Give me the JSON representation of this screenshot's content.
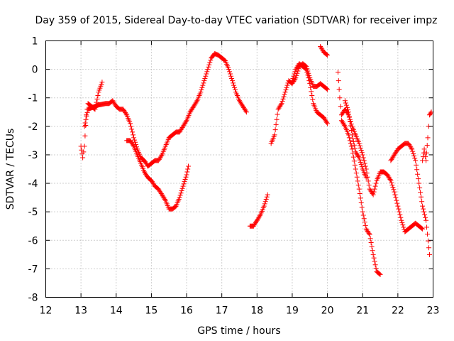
{
  "chart_data": {
    "type": "scatter",
    "title": "Day 359 of 2015, Sidereal Day-to-day VTEC variation (SDTVAR) for receiver impz",
    "xlabel": "GPS time / hours",
    "ylabel": "SDTVAR / TECUs",
    "xlim": [
      12,
      23
    ],
    "ylim": [
      -8,
      1
    ],
    "xticks": [
      "12",
      "13",
      "14",
      "15",
      "16",
      "17",
      "18",
      "19",
      "20",
      "21",
      "22",
      "23"
    ],
    "yticks": [
      "1",
      "0",
      "-1",
      "-2",
      "-3",
      "-4",
      "-5",
      "-6",
      "-7",
      "-8"
    ],
    "grid": true,
    "marker": "+",
    "color": "#ff0000",
    "series": [
      {
        "name": "SDTVAR",
        "segments": [
          [
            [
              13.0,
              -2.7
            ],
            [
              13.05,
              -3.1
            ],
            [
              13.1,
              -2.7
            ],
            [
              13.15,
              -1.6
            ],
            [
              13.2,
              -1.2
            ],
            [
              13.3,
              -1.3
            ],
            [
              13.4,
              -1.4
            ],
            [
              13.5,
              -0.8
            ],
            [
              13.6,
              -0.45
            ]
          ],
          [
            [
              13.1,
              -2.0
            ],
            [
              13.2,
              -1.4
            ],
            [
              13.3,
              -1.35
            ],
            [
              13.5,
              -1.25
            ],
            [
              13.7,
              -1.2
            ],
            [
              13.8,
              -1.2
            ],
            [
              13.9,
              -1.1
            ],
            [
              14.0,
              -1.3
            ],
            [
              14.1,
              -1.4
            ],
            [
              14.2,
              -1.4
            ],
            [
              14.3,
              -1.6
            ],
            [
              14.4,
              -1.9
            ],
            [
              14.5,
              -2.4
            ],
            [
              14.6,
              -2.8
            ],
            [
              14.7,
              -3.1
            ],
            [
              14.8,
              -3.2
            ],
            [
              14.9,
              -3.4
            ],
            [
              15.0,
              -3.3
            ],
            [
              15.1,
              -3.2
            ],
            [
              15.2,
              -3.2
            ],
            [
              15.3,
              -3.0
            ],
            [
              15.4,
              -2.7
            ],
            [
              15.5,
              -2.4
            ],
            [
              15.6,
              -2.3
            ],
            [
              15.7,
              -2.2
            ],
            [
              15.8,
              -2.2
            ],
            [
              15.9,
              -2.0
            ],
            [
              16.0,
              -1.8
            ],
            [
              16.1,
              -1.5
            ],
            [
              16.2,
              -1.3
            ],
            [
              16.3,
              -1.1
            ],
            [
              16.4,
              -0.8
            ],
            [
              16.5,
              -0.4
            ],
            [
              16.6,
              0.0
            ],
            [
              16.7,
              0.4
            ],
            [
              16.8,
              0.55
            ],
            [
              16.9,
              0.5
            ],
            [
              17.0,
              0.4
            ],
            [
              17.1,
              0.3
            ],
            [
              17.2,
              0.0
            ],
            [
              17.3,
              -0.4
            ],
            [
              17.4,
              -0.8
            ],
            [
              17.5,
              -1.1
            ],
            [
              17.6,
              -1.3
            ],
            [
              17.7,
              -1.5
            ]
          ],
          [
            [
              14.3,
              -2.5
            ],
            [
              14.4,
              -2.5
            ],
            [
              14.5,
              -2.7
            ],
            [
              14.6,
              -3.0
            ],
            [
              14.7,
              -3.3
            ],
            [
              14.8,
              -3.6
            ],
            [
              14.9,
              -3.8
            ],
            [
              15.0,
              -3.9
            ],
            [
              15.1,
              -4.1
            ],
            [
              15.2,
              -4.2
            ],
            [
              15.3,
              -4.4
            ],
            [
              15.4,
              -4.6
            ],
            [
              15.5,
              -4.9
            ],
            [
              15.6,
              -4.9
            ],
            [
              15.7,
              -4.8
            ],
            [
              15.8,
              -4.5
            ],
            [
              15.9,
              -4.1
            ],
            [
              16.0,
              -3.7
            ],
            [
              16.05,
              -3.4
            ]
          ],
          [
            [
              17.8,
              -5.5
            ],
            [
              17.9,
              -5.5
            ],
            [
              18.0,
              -5.3
            ],
            [
              18.1,
              -5.1
            ],
            [
              18.2,
              -4.8
            ],
            [
              18.3,
              -4.4
            ]
          ],
          [
            [
              18.4,
              -2.6
            ],
            [
              18.5,
              -2.3
            ],
            [
              18.6,
              -1.4
            ],
            [
              18.7,
              -1.2
            ],
            [
              18.8,
              -0.8
            ],
            [
              18.9,
              -0.4
            ],
            [
              19.0,
              -0.5
            ],
            [
              19.1,
              -0.3
            ],
            [
              19.2,
              0.1
            ],
            [
              19.3,
              0.2
            ],
            [
              19.4,
              0.1
            ],
            [
              19.5,
              -0.3
            ],
            [
              19.6,
              -0.6
            ],
            [
              19.7,
              -0.6
            ],
            [
              19.8,
              -0.5
            ],
            [
              19.9,
              -0.6
            ],
            [
              20.0,
              -0.7
            ]
          ],
          [
            [
              19.0,
              -0.4
            ],
            [
              19.1,
              0.0
            ],
            [
              19.2,
              0.2
            ],
            [
              19.3,
              0.1
            ],
            [
              19.4,
              0.0
            ],
            [
              19.5,
              -0.5
            ],
            [
              19.6,
              -1.2
            ],
            [
              19.7,
              -1.5
            ],
            [
              19.8,
              -1.6
            ],
            [
              19.9,
              -1.7
            ],
            [
              20.0,
              -1.9
            ]
          ],
          [
            [
              19.8,
              0.8
            ],
            [
              19.9,
              0.6
            ],
            [
              20.0,
              0.5
            ]
          ],
          [
            [
              20.3,
              -0.1
            ],
            [
              20.35,
              -1.0
            ],
            [
              20.4,
              -1.6
            ],
            [
              20.5,
              -1.4
            ],
            [
              20.6,
              -1.6
            ],
            [
              20.7,
              -2.0
            ],
            [
              20.8,
              -2.3
            ],
            [
              20.9,
              -2.6
            ],
            [
              21.0,
              -3.0
            ],
            [
              21.1,
              -3.5
            ],
            [
              21.2,
              -4.2
            ],
            [
              21.3,
              -4.4
            ],
            [
              21.4,
              -3.9
            ],
            [
              21.5,
              -3.6
            ],
            [
              21.6,
              -3.6
            ],
            [
              21.7,
              -3.7
            ],
            [
              21.8,
              -3.9
            ],
            [
              21.9,
              -4.3
            ],
            [
              22.0,
              -4.8
            ],
            [
              22.1,
              -5.3
            ],
            [
              22.2,
              -5.7
            ],
            [
              22.3,
              -5.6
            ],
            [
              22.4,
              -5.5
            ],
            [
              22.5,
              -5.4
            ],
            [
              22.6,
              -5.5
            ],
            [
              22.7,
              -5.6
            ]
          ],
          [
            [
              20.4,
              -1.8
            ],
            [
              20.5,
              -2.0
            ],
            [
              20.6,
              -2.3
            ],
            [
              20.7,
              -2.8
            ],
            [
              20.8,
              -3.5
            ],
            [
              20.9,
              -4.2
            ],
            [
              21.0,
              -5.0
            ],
            [
              21.1,
              -5.6
            ],
            [
              21.2,
              -5.8
            ],
            [
              21.3,
              -6.5
            ],
            [
              21.4,
              -7.1
            ],
            [
              21.5,
              -7.2
            ]
          ],
          [
            [
              20.5,
              -1.1
            ],
            [
              20.6,
              -1.5
            ],
            [
              20.7,
              -2.3
            ],
            [
              20.8,
              -2.9
            ],
            [
              20.9,
              -3.1
            ],
            [
              21.0,
              -3.5
            ],
            [
              21.1,
              -3.8
            ]
          ],
          [
            [
              21.8,
              -3.2
            ],
            [
              21.9,
              -3.0
            ],
            [
              22.0,
              -2.8
            ],
            [
              22.1,
              -2.7
            ],
            [
              22.2,
              -2.6
            ],
            [
              22.3,
              -2.6
            ],
            [
              22.4,
              -2.8
            ],
            [
              22.5,
              -3.2
            ],
            [
              22.6,
              -4.0
            ],
            [
              22.7,
              -4.8
            ],
            [
              22.8,
              -5.3
            ],
            [
              22.9,
              -6.5
            ]
          ],
          [
            [
              22.7,
              -3.2
            ],
            [
              22.75,
              -2.8
            ],
            [
              22.8,
              -3.2
            ],
            [
              22.85,
              -2.4
            ],
            [
              22.9,
              -1.6
            ],
            [
              22.95,
              -1.5
            ]
          ]
        ]
      }
    ]
  }
}
